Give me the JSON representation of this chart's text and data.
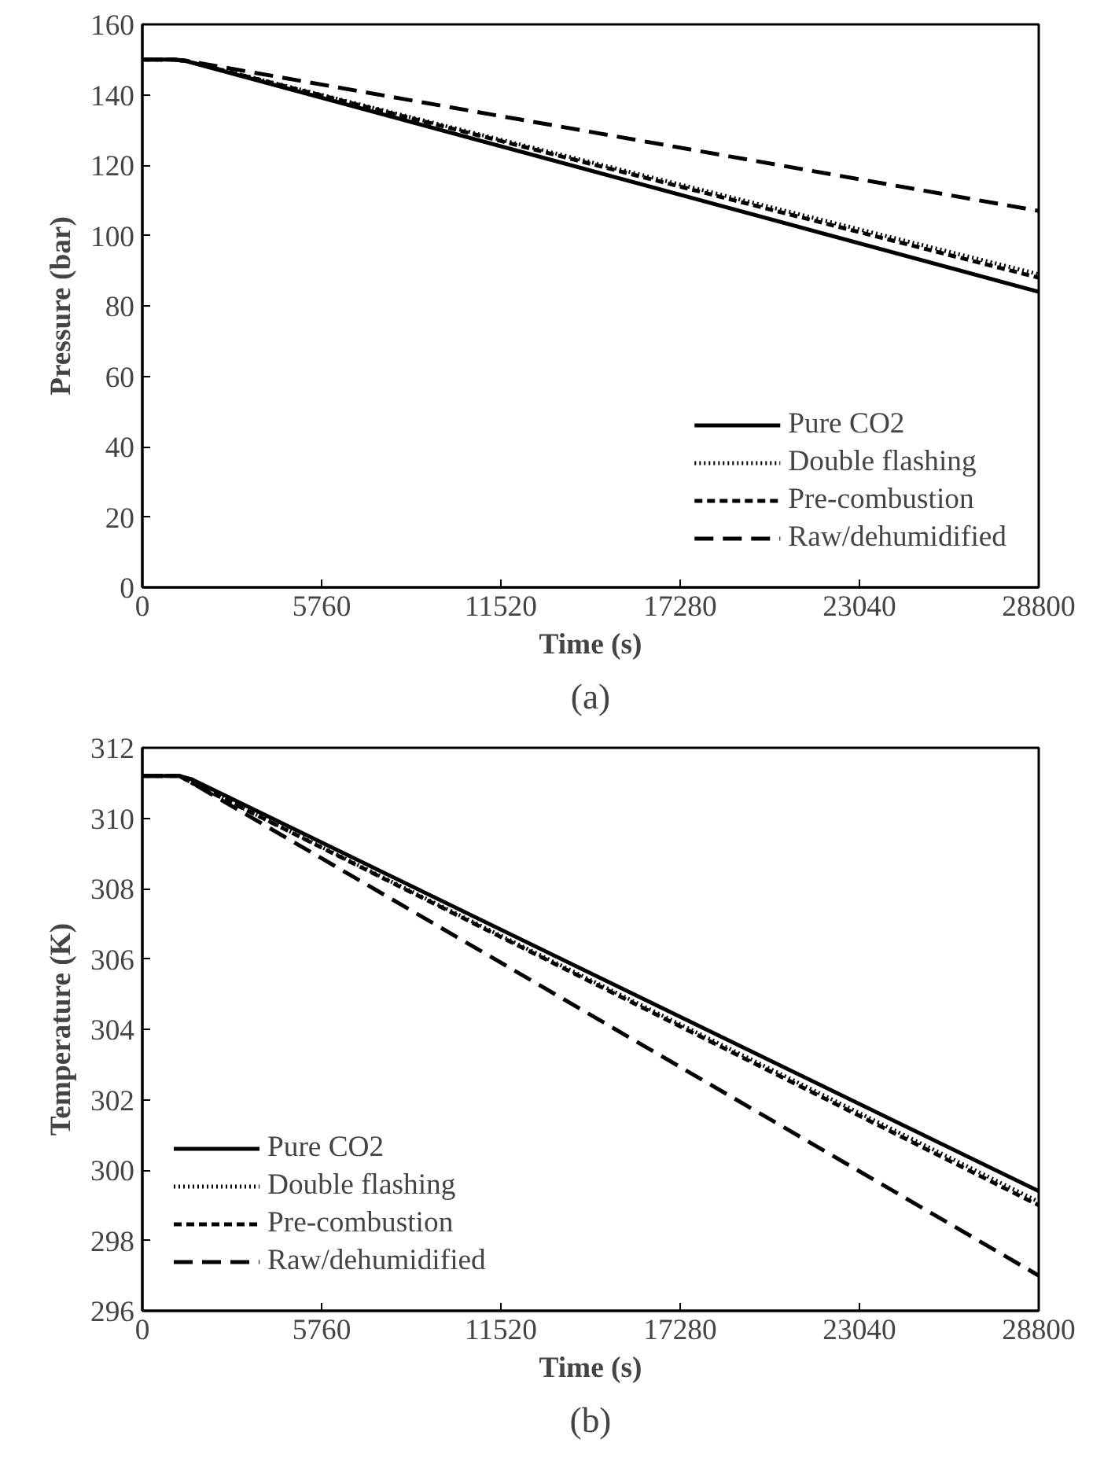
{
  "chart_data": [
    {
      "type": "line",
      "xlabel": "Time (s)",
      "ylabel": "Pressure (bar)",
      "annotations": [
        "(a)"
      ],
      "x": [
        0,
        1000,
        1400,
        28800
      ],
      "xlim": [
        0,
        28800
      ],
      "xticks": [
        0,
        5760,
        11520,
        17280,
        23040,
        28800
      ],
      "ylim": [
        0,
        160
      ],
      "yticks": [
        0,
        20,
        40,
        60,
        80,
        100,
        120,
        140,
        160
      ],
      "grid": false,
      "legend": "bottom right",
      "series": [
        {
          "name": "Pure CO2",
          "color": "#000000",
          "line_style": "solid",
          "values": [
            150,
            150,
            149.6,
            84
          ]
        },
        {
          "name": "Double flashing",
          "color": "#000000",
          "line_style": "dotted",
          "values": [
            150,
            150,
            149.6,
            89
          ]
        },
        {
          "name": "Pre-combustion",
          "color": "#000000",
          "line_style": "dashed",
          "values": [
            150,
            150,
            149.6,
            88
          ]
        },
        {
          "name": "Raw/dehumidified",
          "color": "#000000",
          "line_style": "longdash",
          "values": [
            150,
            150,
            149.7,
            107
          ]
        }
      ]
    },
    {
      "type": "line",
      "xlabel": "Time (s)",
      "ylabel": "Temperature (K)",
      "annotations": [
        "(b)"
      ],
      "x": [
        0,
        1200,
        1600,
        28800
      ],
      "xlim": [
        0,
        28800
      ],
      "xticks": [
        0,
        5760,
        11520,
        17280,
        23040,
        28800
      ],
      "ylim": [
        296,
        312
      ],
      "yticks": [
        296,
        298,
        300,
        302,
        304,
        306,
        308,
        310,
        312
      ],
      "grid": false,
      "legend": "bottom left",
      "series": [
        {
          "name": "Pure CO2",
          "color": "#000000",
          "line_style": "solid",
          "values": [
            311.2,
            311.2,
            311.1,
            299.4
          ]
        },
        {
          "name": "Double flashing",
          "color": "#000000",
          "line_style": "dotted",
          "values": [
            311.2,
            311.2,
            311.0,
            299.1
          ]
        },
        {
          "name": "Pre-combustion",
          "color": "#000000",
          "line_style": "dashed",
          "values": [
            311.2,
            311.2,
            311.0,
            299.0
          ]
        },
        {
          "name": "Raw/dehumidified",
          "color": "#000000",
          "line_style": "longdash",
          "values": [
            311.2,
            311.2,
            311.0,
            297.0
          ]
        }
      ]
    }
  ]
}
